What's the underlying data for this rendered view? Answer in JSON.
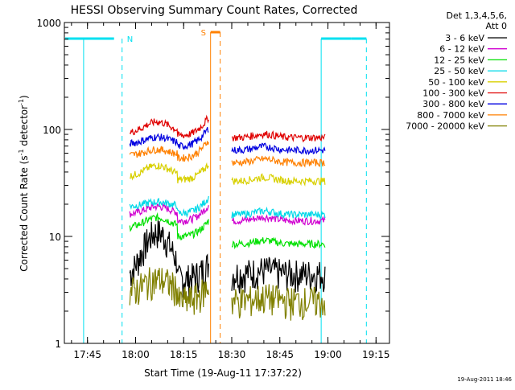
{
  "chart_data": {
    "type": "line",
    "title": "HESSI Observing Summary Count Rates, Corrected",
    "xlabel": "Start Time (19-Aug-11 17:37:22)",
    "ylabel_main": "Corrected Count Rate (s",
    "ylabel_sup1": "-1",
    "ylabel_mid": " detector",
    "ylabel_sup2": "-1",
    "ylabel_end": ")",
    "yscale": "log",
    "ylim": [
      1,
      1000
    ],
    "xlim_minutes": [
      17.63,
      19.32
    ],
    "xticks": [
      {
        "label": "17:45",
        "t": 17.75
      },
      {
        "label": "18:00",
        "t": 18.0
      },
      {
        "label": "18:15",
        "t": 18.25
      },
      {
        "label": "18:30",
        "t": 18.5
      },
      {
        "label": "18:45",
        "t": 18.75
      },
      {
        "label": "19:00",
        "t": 19.0
      },
      {
        "label": "19:15",
        "t": 19.25
      }
    ],
    "yticks": [
      {
        "label": "1",
        "v": 1
      },
      {
        "label": "10",
        "v": 10
      },
      {
        "label": "100",
        "v": 100
      },
      {
        "label": "1000",
        "v": 1000
      }
    ],
    "legend_header": [
      "Det 1,3,4,5,6,",
      "Att 0"
    ],
    "legend_position": "right",
    "series": [
      {
        "name": "3 - 6 keV",
        "color": "#000000"
      },
      {
        "name": "6 - 12 keV",
        "color": "#d000d0"
      },
      {
        "name": "12 - 25 keV",
        "color": "#00e000"
      },
      {
        "name": "25 - 50 keV",
        "color": "#00d8e8"
      },
      {
        "name": "50 - 100 keV",
        "color": "#d8d000"
      },
      {
        "name": "100 - 300 keV",
        "color": "#e00000"
      },
      {
        "name": "300 - 800 keV",
        "color": "#0000e0"
      },
      {
        "name": "800 - 7000 keV",
        "color": "#ff8000"
      },
      {
        "name": "7000 - 20000 keV",
        "color": "#808000"
      }
    ],
    "segments": [
      {
        "start": 17.97,
        "end": 18.38
      },
      {
        "start": 18.5,
        "end": 18.985
      }
    ],
    "night_markers": [
      {
        "label": "N",
        "t": 17.93
      }
    ],
    "saa_markers": [
      {
        "label": "S",
        "t": 18.39,
        "t_end": 18.44
      }
    ],
    "profiles": {
      "red": {
        "a": 92,
        "b": 118,
        "c": 88,
        "s2": 84
      },
      "blue": {
        "a": 73,
        "b": 85,
        "c": 70,
        "s2": 64
      },
      "orange": {
        "a": 57,
        "b": 65,
        "c": 54,
        "s2": 49
      },
      "yellow": {
        "a": 36,
        "b": 46,
        "c": 34,
        "s2": 33
      },
      "cyan": {
        "a": 19,
        "b": 21,
        "c": 16.5,
        "s2": 16
      },
      "magenta": {
        "a": 16,
        "b": 19,
        "c": 14,
        "s2": 14
      },
      "green": {
        "a": 12,
        "b": 15,
        "c": 10,
        "s2": 8.5
      },
      "black": {
        "a": 4,
        "b": 11,
        "c": 4,
        "s2": 4.5
      },
      "olive": {
        "a": 3,
        "b": 4,
        "c": 2.5,
        "s2": 2.5
      }
    },
    "footer_timestamp": "19-Aug-2011 18:46"
  }
}
